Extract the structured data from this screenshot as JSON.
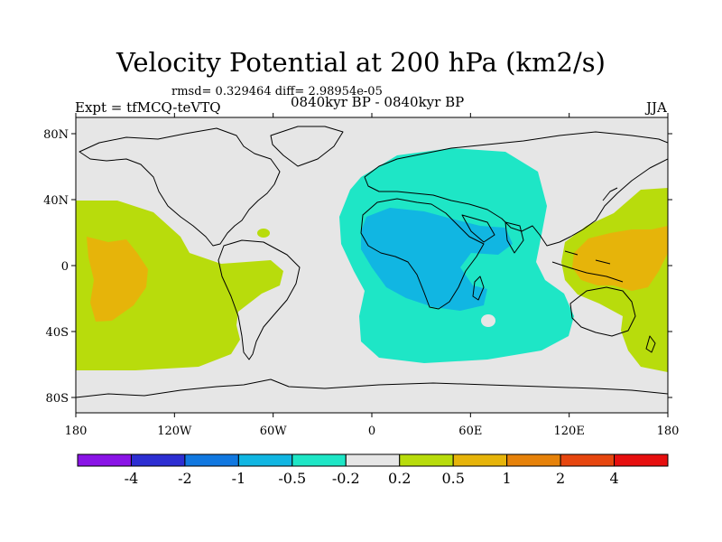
{
  "title": "Velocity Potential at 200 hPa (km2/s)",
  "stats_line": "rmsd= 0.329464  diff= 2.98954e-05",
  "left_label": "Expt = tfMCQ-teVTQ",
  "center_label": "0840kyr BP - 0840kyr BP",
  "right_label": "JJA",
  "map": {
    "background": "#e6e6e6",
    "lat_ticks": [
      "80N",
      "40N",
      "0",
      "40S",
      "80S"
    ],
    "lon_ticks": [
      "180",
      "120W",
      "60W",
      "0",
      "60E",
      "120E",
      "180"
    ]
  },
  "colorbar": {
    "labels": [
      "-4",
      "-2",
      "-1",
      "-0.5",
      "-0.2",
      "0.2",
      "0.5",
      "1",
      "2",
      "4"
    ],
    "colors": [
      "#8a14e6",
      "#2d2ed2",
      "#1178e0",
      "#11b6e2",
      "#1ee6c6",
      "#e6e6e6",
      "#b8dc0c",
      "#e6b40a",
      "#e6820a",
      "#e6460f",
      "#e60f0f"
    ]
  }
}
